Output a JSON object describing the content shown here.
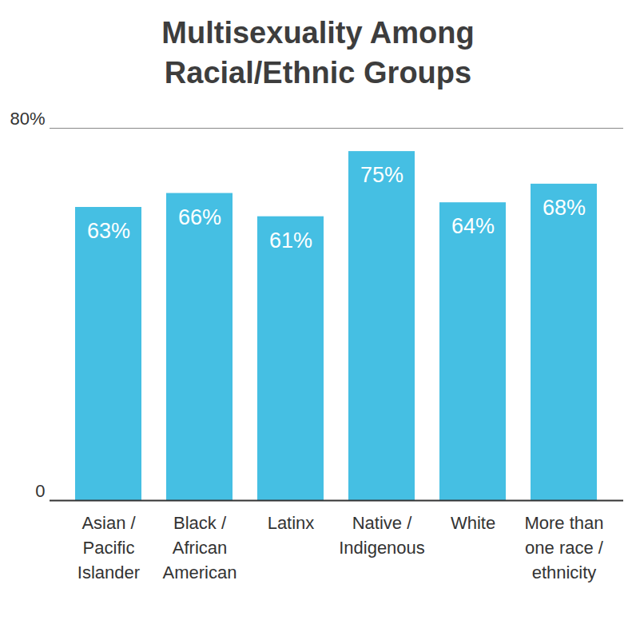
{
  "chart_data": {
    "type": "bar",
    "title": "Multisexuality Among\nRacial/Ethnic Groups",
    "categories": [
      "Asian /\nPacific\nIslander",
      "Black /\nAfrican\nAmerican",
      "Latinx",
      "Native /\nIndigenous",
      "White",
      "More than\none race /\nethnicity"
    ],
    "values": [
      63,
      66,
      61,
      75,
      64,
      68
    ],
    "value_labels": [
      "63%",
      "66%",
      "61%",
      "75%",
      "64%",
      "68%"
    ],
    "color": "#45bfe3",
    "ylim": [
      0,
      80
    ],
    "yticks": [
      0,
      {
        "value": 80,
        "label": "80%"
      }
    ],
    "grid": true,
    "data_labels": true
  }
}
